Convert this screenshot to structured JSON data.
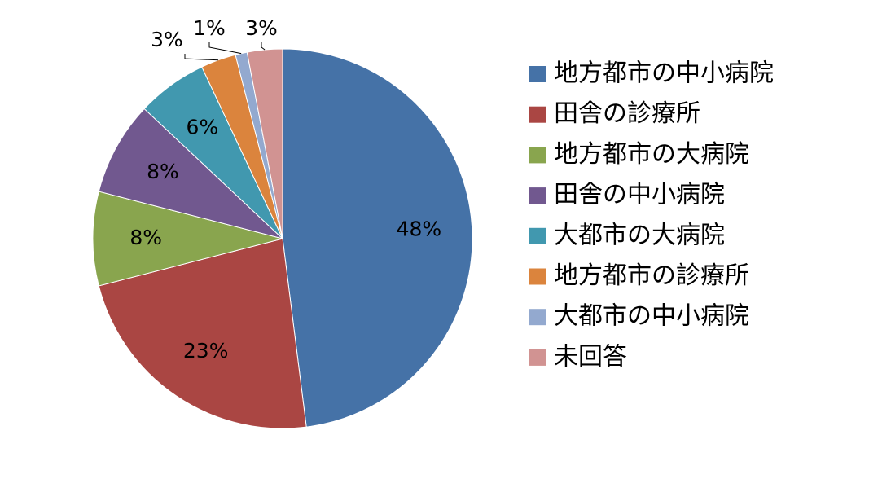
{
  "chart_data": {
    "type": "pie",
    "categories": [
      "地方都市の中小病院",
      "田舎の診療所",
      "地方都市の大病院",
      "田舎の中小病院",
      "大都市の大病院",
      "地方都市の診療所",
      "大都市の中小病院",
      "未回答"
    ],
    "values": [
      48,
      23,
      8,
      8,
      6,
      3,
      1,
      3
    ],
    "value_labels": [
      "48%",
      "23%",
      "8%",
      "8%",
      "6%",
      "3%",
      "1%",
      "3%"
    ],
    "colors": [
      "#4572a7",
      "#aa4643",
      "#89a54e",
      "#71588f",
      "#4198af",
      "#db843d",
      "#93a9cf",
      "#d19392"
    ],
    "legend": "right"
  }
}
